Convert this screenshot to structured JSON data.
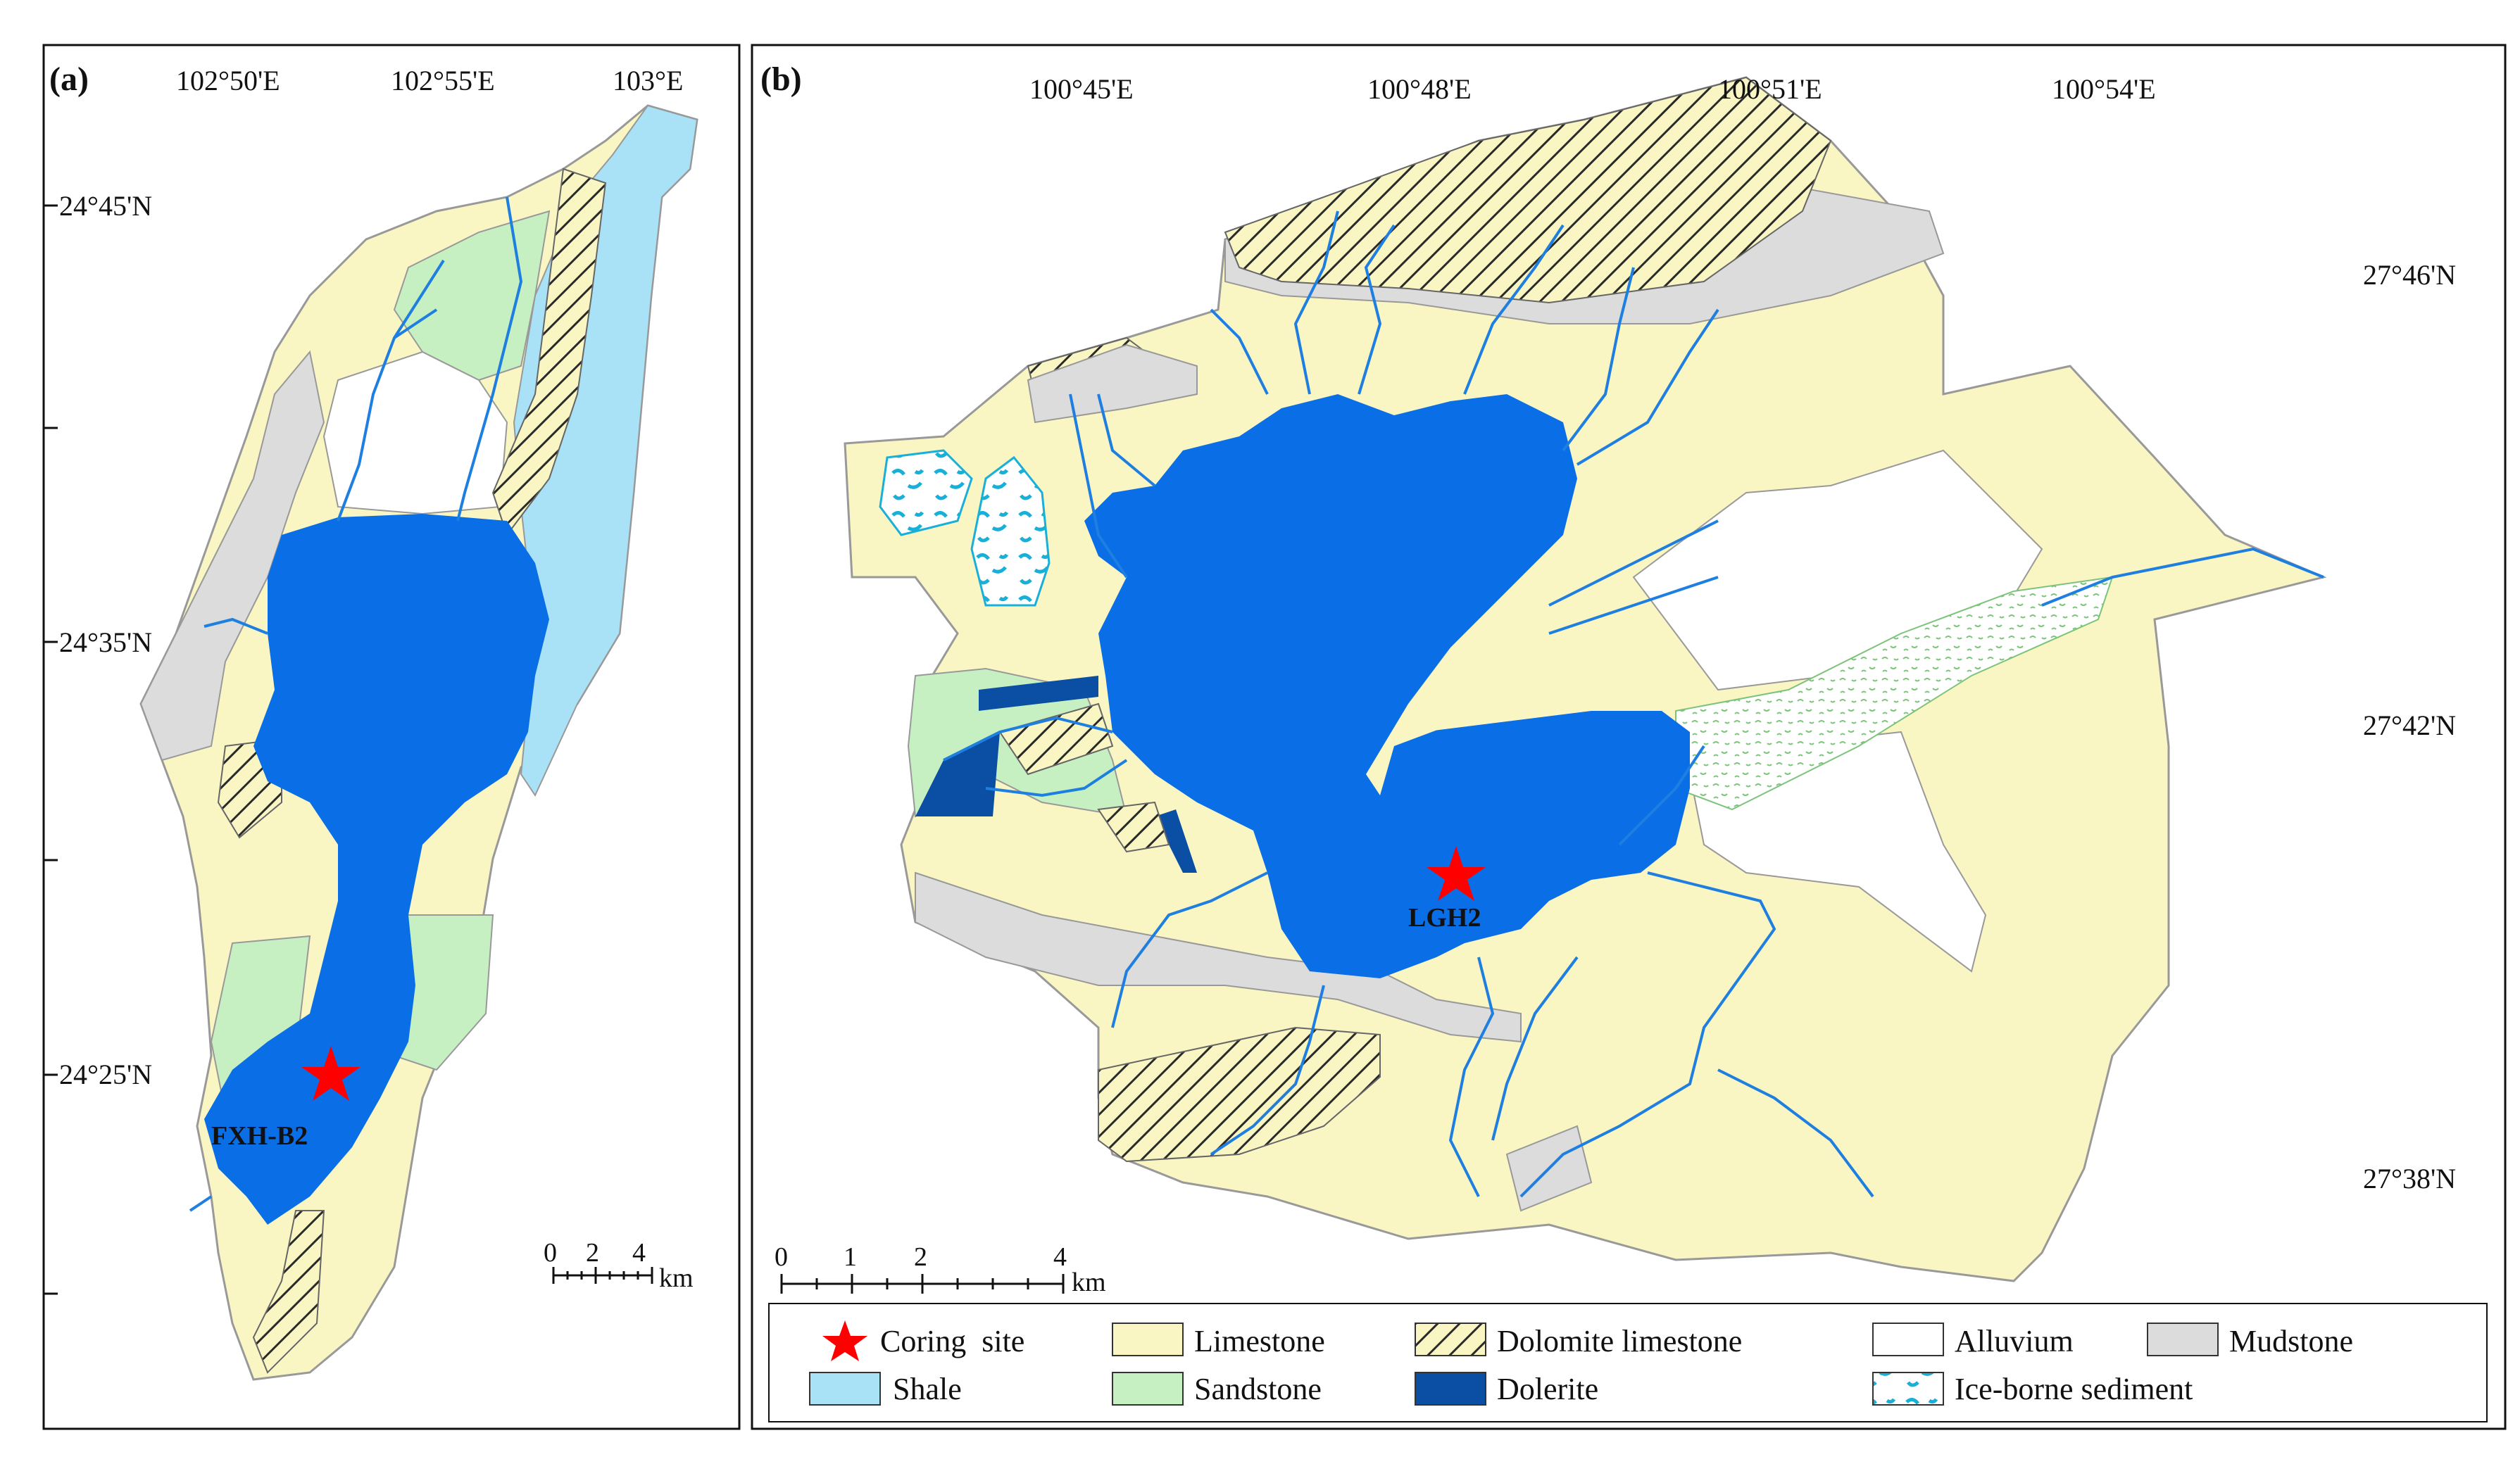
{
  "panel_a": {
    "label": "(a)",
    "lon_labels": [
      "102°50'E",
      "102°55'E",
      "103°E"
    ],
    "lat_labels": [
      "24°45'N",
      "24°35'N",
      "24°25'N"
    ],
    "site_name": "FXH-B2",
    "scale": {
      "ticks": [
        "0",
        "2",
        "4"
      ],
      "unit": "km"
    }
  },
  "panel_b": {
    "label": "(b)",
    "lon_labels": [
      "100°45'E",
      "100°48'E",
      "100°51'E",
      "100°54'E"
    ],
    "lat_labels": [
      "27°46'N",
      "27°42'N",
      "27°38'N"
    ],
    "site_name": "LGH2",
    "scale": {
      "ticks": [
        "0",
        "1",
        "2",
        "4"
      ],
      "unit": "km"
    }
  },
  "legend": {
    "coring_site": "Coring  site",
    "limestone": "Limestone",
    "dolomite": "Dolomite limestone",
    "alluvium": "Alluvium",
    "mudstone": "Mudstone",
    "shale": "Shale",
    "sandstone": "Sandstone",
    "dolerite": "Dolerite",
    "ice": "Ice-borne sediment"
  },
  "colors": {
    "lake": "#0a6ee6",
    "limestone": "#f9f6c4",
    "shale": "#a9e2f7",
    "sandstone": "#c7f0c2",
    "mudstone": "#dcdcdc",
    "dolerite": "#0a4fa3",
    "river": "#1e7fe0",
    "star": "#ff0000"
  }
}
